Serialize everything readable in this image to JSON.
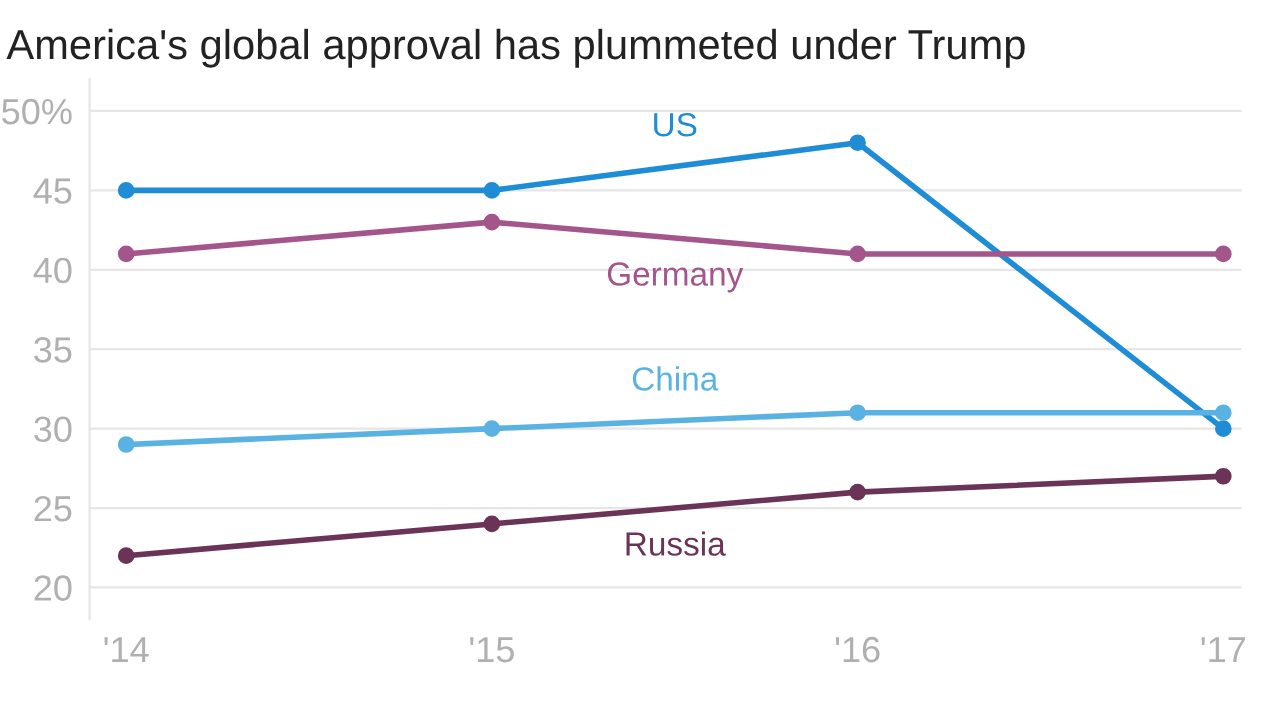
{
  "chart_data": {
    "type": "line",
    "title": "America's global approval has plummeted under Trump",
    "categories": [
      "'14",
      "'15",
      "'16",
      "'17"
    ],
    "series": [
      {
        "name": "US",
        "color": "#1f8dd6",
        "values": [
          45,
          45,
          48,
          30
        ]
      },
      {
        "name": "Germany",
        "color": "#a4558c",
        "values": [
          41,
          43,
          41,
          41
        ]
      },
      {
        "name": "China",
        "color": "#5ab2e3",
        "values": [
          29,
          30,
          31,
          31
        ]
      },
      {
        "name": "Russia",
        "color": "#6b3456",
        "values": [
          22,
          24,
          26,
          27
        ]
      }
    ],
    "ylim": [
      18,
      52
    ],
    "yticks": [
      20,
      25,
      30,
      35,
      40,
      45,
      {
        "value": 50,
        "label": "50%"
      }
    ],
    "grid": "y",
    "marker": "circle",
    "line_style": "solid",
    "legend": false
  }
}
